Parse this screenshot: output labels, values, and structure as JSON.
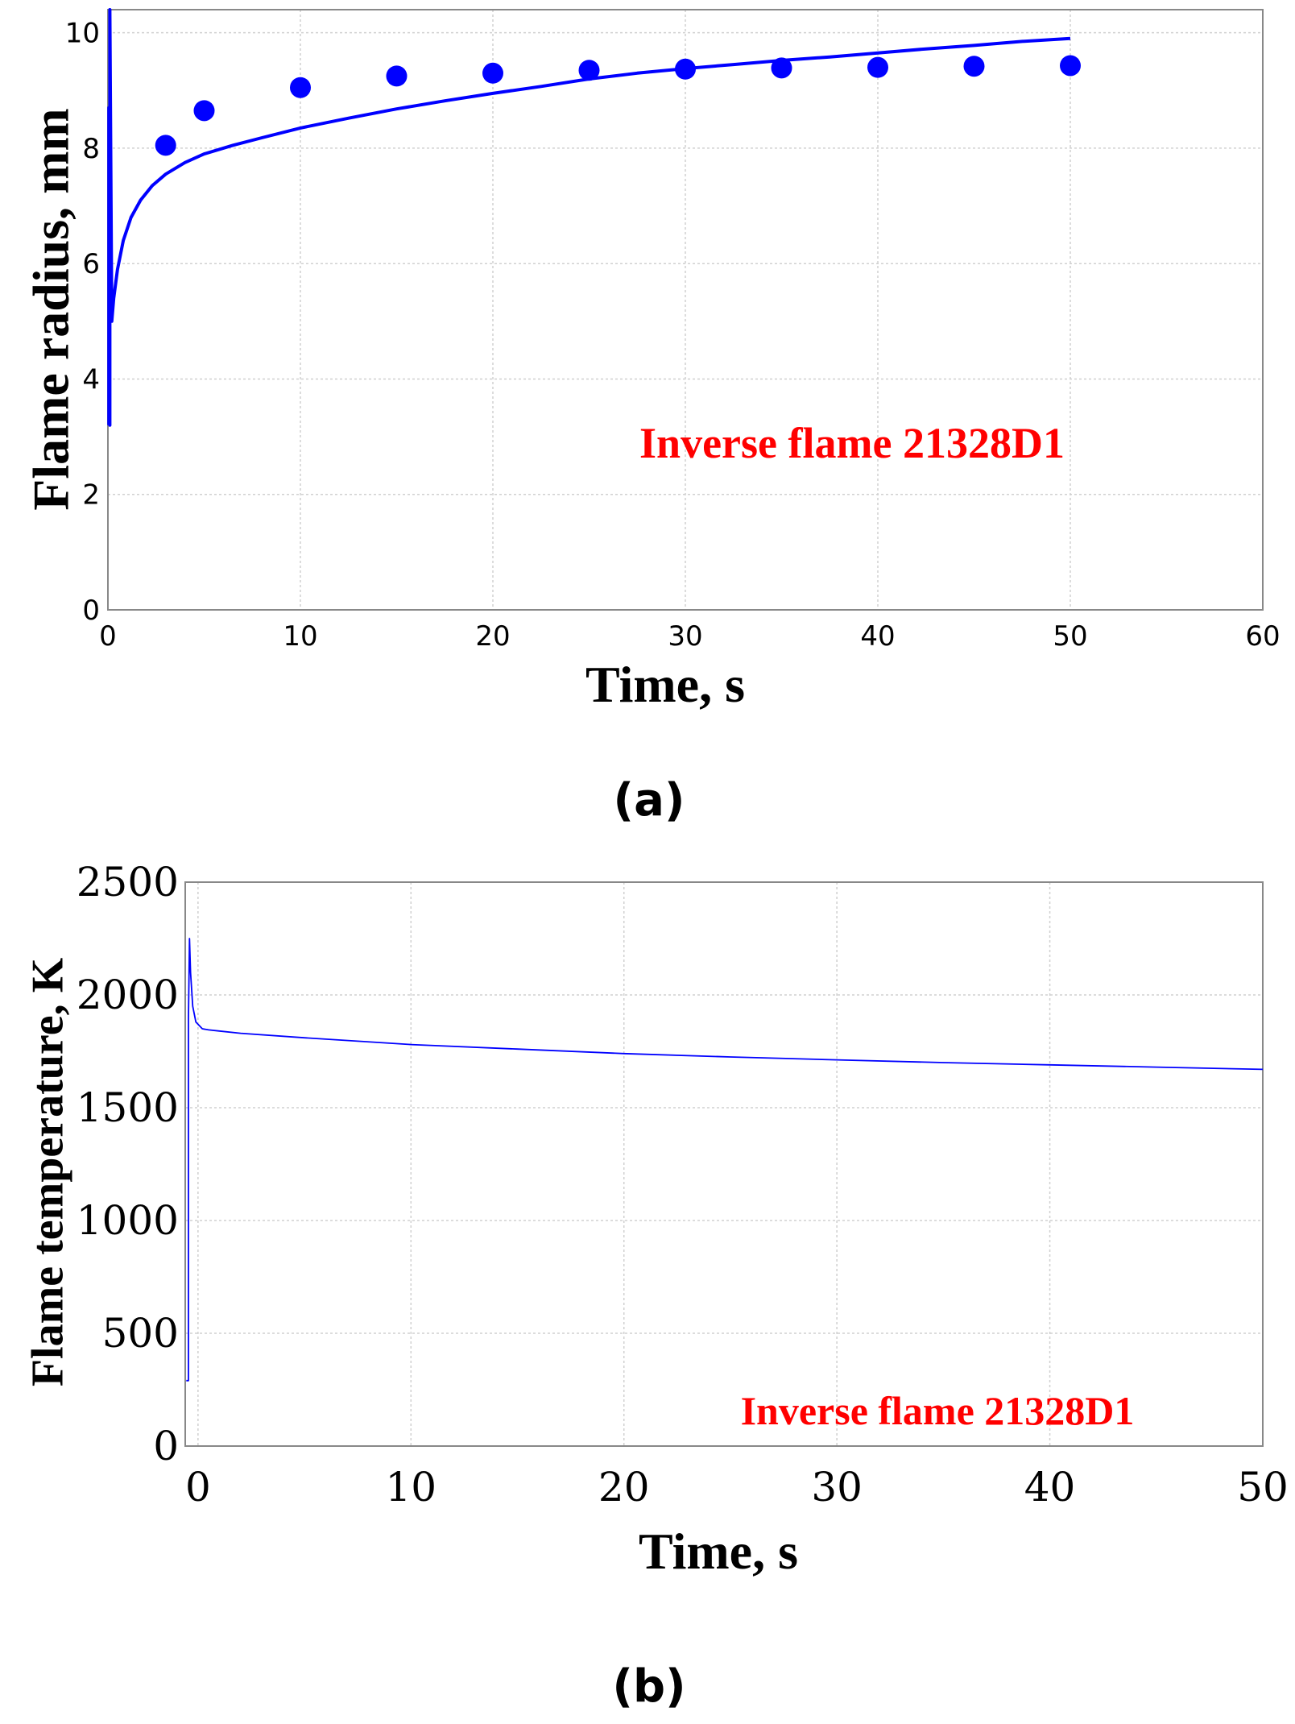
{
  "colors": {
    "series": "#0000ff",
    "annotation": "#ff0000"
  },
  "chart_data": [
    {
      "type": "line",
      "caption": "(a)",
      "xlabel": "Time, s",
      "ylabel": "Flame radius, mm",
      "xlim": [
        0,
        60
      ],
      "ylim": [
        0,
        10.4
      ],
      "xticks": [
        0,
        10,
        20,
        30,
        40,
        50,
        60
      ],
      "yticks": [
        0,
        2,
        4,
        6,
        8,
        10
      ],
      "grid": true,
      "annotation": "Inverse flame 21328D1",
      "series": [
        {
          "kind": "line",
          "x": [
            0.05,
            0.05,
            0.1,
            0.1,
            0.2,
            0.3,
            0.5,
            0.8,
            1.2,
            1.7,
            2.3,
            3.0,
            4.0,
            5.0,
            6.5,
            8.0,
            10.0,
            12.5,
            15.0,
            17.5,
            20.0,
            22.5,
            25.0,
            27.5,
            30.0,
            32.5,
            35.0,
            37.5,
            40.0,
            42.5,
            45.0,
            47.5,
            50.0
          ],
          "y": [
            3.2,
            8.7,
            3.2,
            10.4,
            5.0,
            5.4,
            5.9,
            6.4,
            6.8,
            7.1,
            7.35,
            7.55,
            7.75,
            7.9,
            8.05,
            8.18,
            8.35,
            8.52,
            8.68,
            8.82,
            8.95,
            9.07,
            9.2,
            9.3,
            9.38,
            9.45,
            9.52,
            9.58,
            9.65,
            9.72,
            9.78,
            9.85,
            9.9
          ]
        },
        {
          "kind": "scatter",
          "x": [
            3,
            5,
            10,
            15,
            20,
            25,
            30,
            35,
            40,
            45,
            50
          ],
          "y": [
            8.05,
            8.65,
            9.05,
            9.25,
            9.3,
            9.35,
            9.37,
            9.39,
            9.4,
            9.42,
            9.43
          ]
        }
      ]
    },
    {
      "type": "line",
      "caption": "(b)",
      "xlabel": "Time, s",
      "ylabel": "Flame temperature, K",
      "xlim": [
        -0.6,
        50
      ],
      "ylim": [
        0,
        2500
      ],
      "xticks": [
        0,
        10,
        20,
        30,
        40,
        50
      ],
      "yticks": [
        0,
        500,
        1000,
        1500,
        2000,
        2500
      ],
      "grid": true,
      "annotation": "Inverse flame 21328D1",
      "series": [
        {
          "kind": "line",
          "x": [
            -0.55,
            -0.45,
            -0.45,
            -0.4,
            -0.35,
            -0.25,
            -0.1,
            0.2,
            0.5,
            1.0,
            2.0,
            5.0,
            10.0,
            15.0,
            20.0,
            25.0,
            30.0,
            35.0,
            40.0,
            45.0,
            50.0
          ],
          "y": [
            290,
            290,
            1900,
            2250,
            2100,
            1950,
            1880,
            1850,
            1845,
            1840,
            1830,
            1810,
            1780,
            1760,
            1740,
            1725,
            1712,
            1700,
            1690,
            1680,
            1670
          ]
        }
      ]
    }
  ]
}
